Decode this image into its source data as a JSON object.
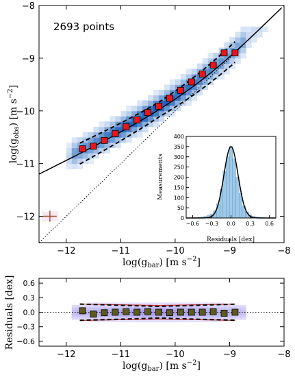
{
  "chart_data": [
    {
      "type": "scatter",
      "panel": "main",
      "annotation": "2693 points",
      "xlabel": "log(g_bar) [m s^-2]",
      "ylabel": "log(g_obs) [m s^-2]",
      "xlim": [
        -12.5,
        -8
      ],
      "ylim": [
        -12.5,
        -8
      ],
      "xticks": [
        "−12",
        "−11",
        "−10",
        "−9",
        "−8"
      ],
      "yticks": [
        "−12",
        "−11",
        "−10",
        "−9",
        "−8"
      ],
      "binned_points": {
        "x": [
          -11.7,
          -11.5,
          -11.3,
          -11.1,
          -10.9,
          -10.7,
          -10.5,
          -10.3,
          -10.1,
          -9.9,
          -9.7,
          -9.5,
          -9.3,
          -9.1,
          -8.9
        ],
        "y": [
          -10.72,
          -10.67,
          -10.56,
          -10.43,
          -10.3,
          -10.17,
          -10.03,
          -9.91,
          -9.76,
          -9.61,
          -9.45,
          -9.3,
          -9.13,
          -8.9,
          -8.9
        ]
      },
      "error_bar_example": {
        "x": -12.3,
        "y": -12.0
      }
    },
    {
      "type": "bar",
      "panel": "inset",
      "xlabel": "Residuals [dex]",
      "ylabel": "Measurements",
      "xlim": [
        -0.7,
        0.7
      ],
      "ylim": [
        0,
        400
      ],
      "xticks": [
        "−0.6",
        "−0.3",
        "0.0",
        "0.3",
        "0.6"
      ],
      "yticks": [
        "0",
        "50",
        "100",
        "150",
        "200",
        "250",
        "300",
        "350",
        "400"
      ],
      "bins": [
        -0.6,
        -0.55,
        -0.5,
        -0.45,
        -0.4,
        -0.35,
        -0.3,
        -0.25,
        -0.2,
        -0.15,
        -0.1,
        -0.05,
        0.0,
        0.05,
        0.1,
        0.15,
        0.2,
        0.25,
        0.3,
        0.35,
        0.4,
        0.45,
        0.5,
        0.55,
        0.6
      ],
      "counts": [
        1,
        2,
        3,
        5,
        8,
        12,
        20,
        35,
        70,
        140,
        230,
        300,
        350,
        290,
        200,
        120,
        60,
        30,
        15,
        8,
        5,
        3,
        2,
        1,
        1
      ]
    },
    {
      "type": "scatter",
      "panel": "residuals",
      "xlabel": "log(g_bar) [m s^-2]",
      "ylabel": "Residuals [dex]",
      "xlim": [
        -12.5,
        -8
      ],
      "ylim": [
        -0.7,
        0.7
      ],
      "xticks": [
        "−12",
        "−11",
        "−10",
        "−9",
        "−8"
      ],
      "yticks": [
        "0.6",
        "0.3",
        "0.0",
        "−0.3",
        "−0.6"
      ],
      "binned_points": {
        "x": [
          -11.7,
          -11.5,
          -11.3,
          -11.1,
          -10.9,
          -10.7,
          -10.5,
          -10.3,
          -10.1,
          -9.9,
          -9.7,
          -9.5,
          -9.3,
          -9.1,
          -8.9
        ],
        "y": [
          0.03,
          -0.04,
          -0.01,
          0.0,
          0.01,
          0.0,
          0.01,
          0.0,
          -0.01,
          0.0,
          0.0,
          0.0,
          0.01,
          -0.02,
          0.0
        ]
      }
    }
  ]
}
